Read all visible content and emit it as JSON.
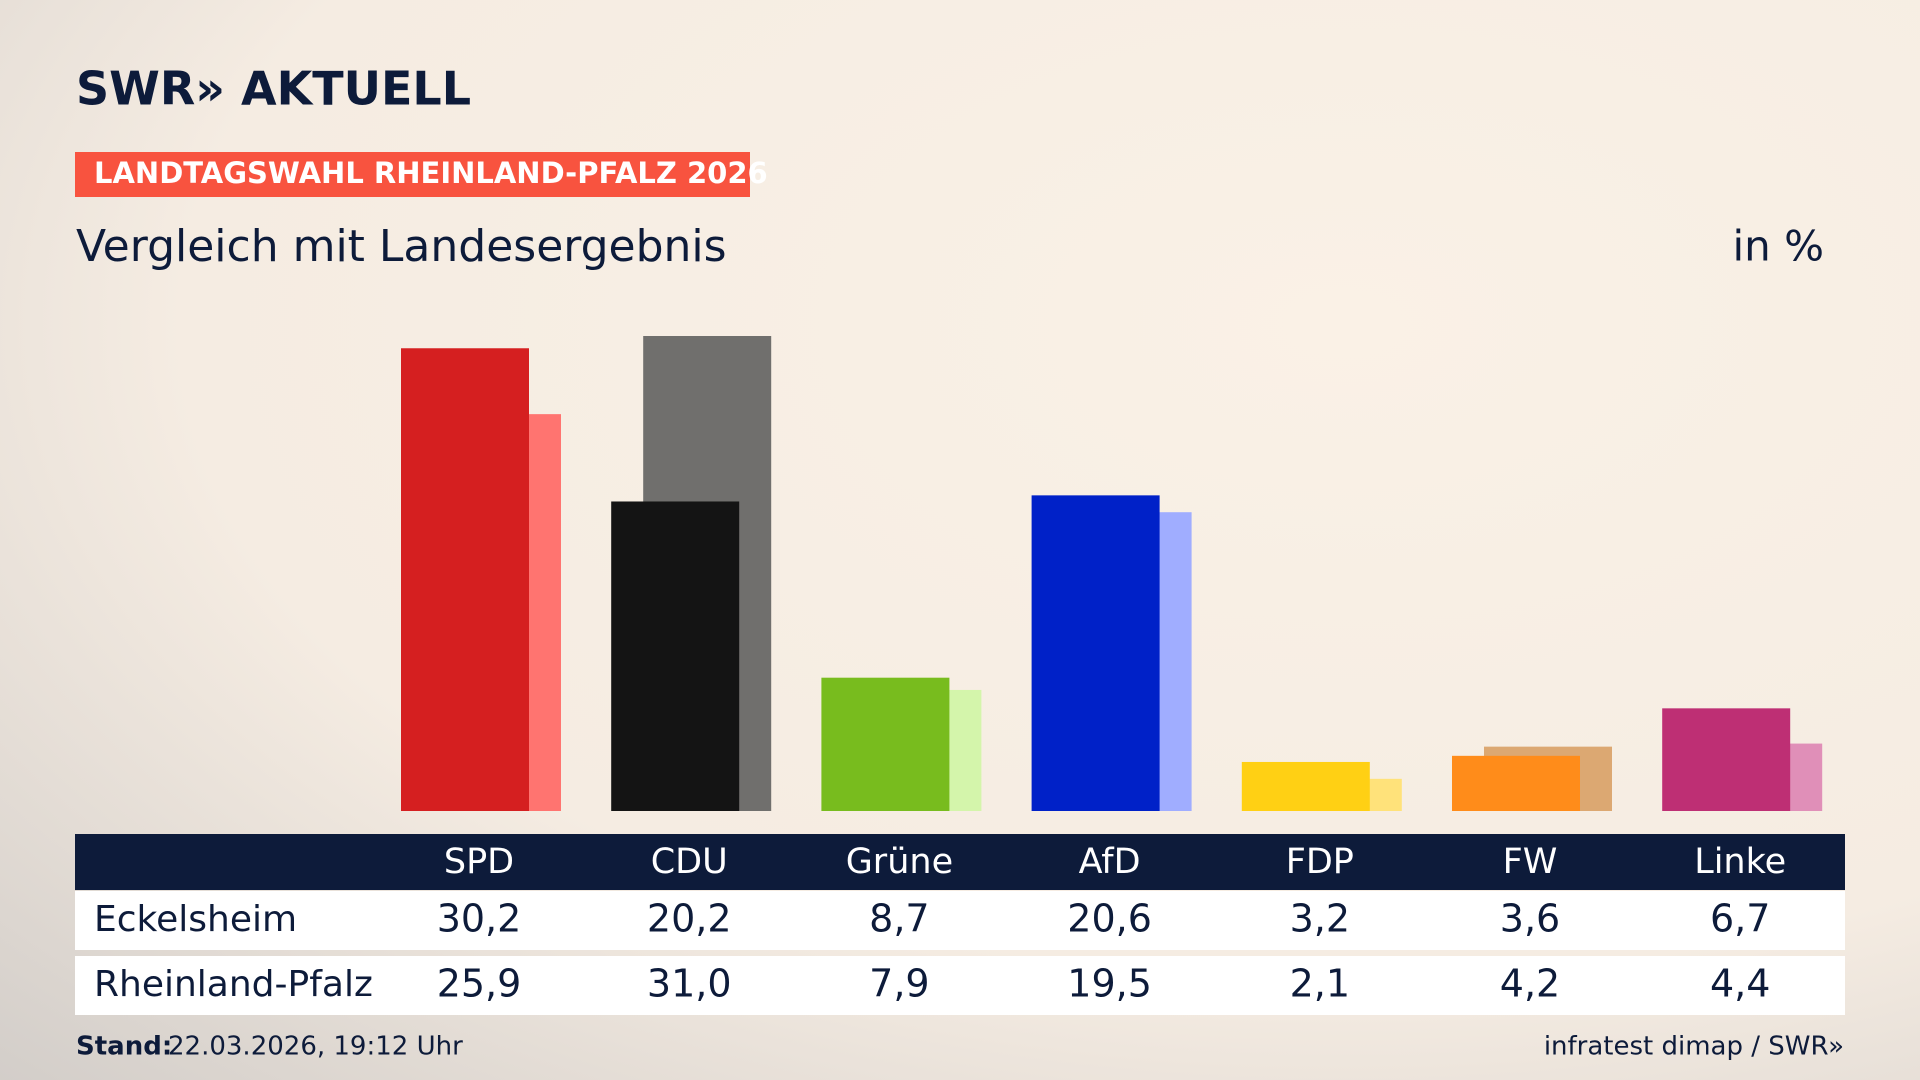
{
  "chart_data": {
    "type": "bar",
    "brand": "SWR» AKTUELL",
    "banner": "LANDTAGSWAHL RHEINLAND-PFALZ 2026",
    "title": "Vergleich mit Landesergebnis",
    "unit": "in %",
    "categories": [
      "SPD",
      "CDU",
      "Grüne",
      "AfD",
      "FDP",
      "FW",
      "Linke"
    ],
    "series": [
      {
        "name": "Eckelsheim",
        "colors": [
          "#d51f20",
          "#141414",
          "#78bc1e",
          "#0021c8",
          "#ffd014",
          "#ff8c1a",
          "#be2f74"
        ],
        "values": [
          30.2,
          20.2,
          8.7,
          20.6,
          3.2,
          3.6,
          6.7
        ],
        "value_labels": [
          "30,2",
          "20,2",
          "8,7",
          "20,6",
          "3,2",
          "3,6",
          "6,7"
        ]
      },
      {
        "name": "Rheinland-Pfalz",
        "colors": [
          "#ff7470",
          "#706f6d",
          "#d4f5ab",
          "#a0adff",
          "#ffe27a",
          "#dca872",
          "#e08fb8"
        ],
        "values": [
          25.9,
          31.0,
          7.9,
          19.5,
          2.1,
          4.2,
          4.4
        ],
        "value_labels": [
          "25,9",
          "31,0",
          "7,9",
          "19,5",
          "2,1",
          "4,2",
          "4,4"
        ]
      }
    ],
    "footer_label": "Stand:",
    "footer_date": "22.03.2026, 19:12 Uhr",
    "source": "infratest dimap / SWR»"
  }
}
